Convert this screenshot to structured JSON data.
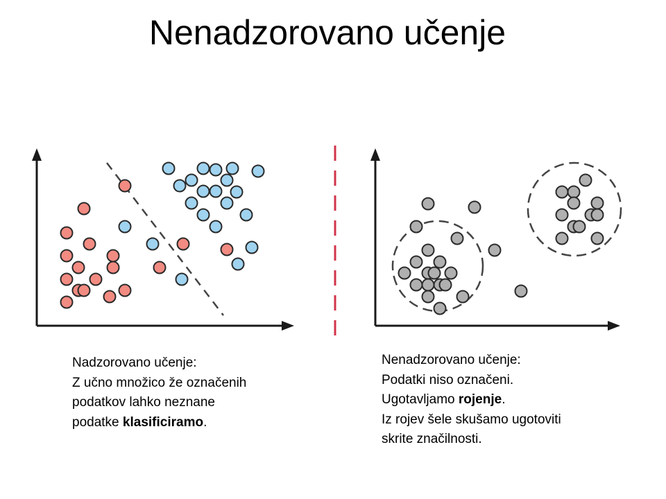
{
  "title": "Nenadzorovano učenje",
  "colors": {
    "class_red": "#f28b82",
    "class_blue": "#9fd3ef",
    "point_gray": "#b0b0b0",
    "divider_red": "#d1344a",
    "axis": "#1a1a1a"
  },
  "supervised": {
    "heading": "Nadzorovano učenje:",
    "line1": "Z učno množico že označenih",
    "line2": "podatkov lahko neznane",
    "line3_pre": "podatke ",
    "line3_bold": "klasificiramo",
    "line3_post": "."
  },
  "unsupervised": {
    "heading": "Nenadzorovano učenje:",
    "line1": "Podatki niso označeni.",
    "line2_pre": "Ugotavljamo ",
    "line2_bold": "rojenje",
    "line2_post": ".",
    "line3": "Iz rojev šele skušamo ugotoviti",
    "line4": "skrite značilnosti."
  }
}
